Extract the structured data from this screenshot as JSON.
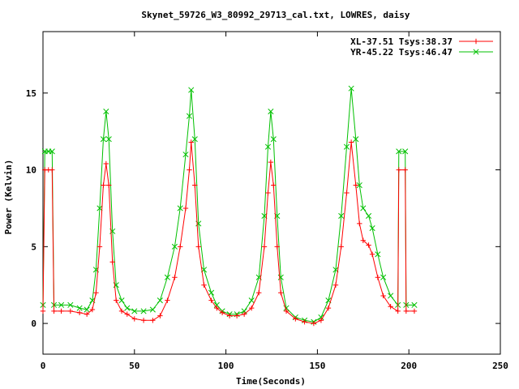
{
  "chart_data": {
    "type": "line",
    "title": "Skynet_59726_W3_80992_29713_cal.txt, LOWRES, daisy",
    "xlabel": "Time(Seconds)",
    "ylabel": "Power (Kelvin)",
    "xlim": [
      0,
      250
    ],
    "ylim": [
      -2,
      19
    ],
    "xticks": [
      0,
      50,
      100,
      150,
      200,
      250
    ],
    "xtick_labels": [
      "0",
      "50",
      "100",
      "150",
      "200",
      "250"
    ],
    "yticks": [
      0,
      5,
      10,
      15
    ],
    "ytick_labels": [
      "0",
      "5",
      "10",
      "15"
    ],
    "grid": false,
    "legend_position": "top-right",
    "series": [
      {
        "name": "XL-37.51 Tsys:38.37",
        "color": "#ff0000",
        "marker": "plus",
        "points": [
          [
            0,
            0.8
          ],
          [
            1,
            10.0
          ],
          [
            3,
            10.0
          ],
          [
            5,
            10.0
          ],
          [
            6,
            0.8
          ],
          [
            10,
            0.8
          ],
          [
            15,
            0.8
          ],
          [
            20,
            0.7
          ],
          [
            24,
            0.6
          ],
          [
            27,
            0.9
          ],
          [
            29,
            2.0
          ],
          [
            31,
            5.0
          ],
          [
            33,
            9.0
          ],
          [
            34.5,
            10.4
          ],
          [
            36,
            9.0
          ],
          [
            38,
            4.0
          ],
          [
            40,
            1.5
          ],
          [
            43,
            0.8
          ],
          [
            46,
            0.6
          ],
          [
            50,
            0.3
          ],
          [
            55,
            0.2
          ],
          [
            60,
            0.2
          ],
          [
            64,
            0.5
          ],
          [
            68,
            1.5
          ],
          [
            72,
            3.0
          ],
          [
            75,
            5.0
          ],
          [
            78,
            7.5
          ],
          [
            80,
            10.0
          ],
          [
            81,
            11.8
          ],
          [
            83,
            9.0
          ],
          [
            85,
            5.0
          ],
          [
            88,
            2.5
          ],
          [
            92,
            1.5
          ],
          [
            95,
            1.0
          ],
          [
            98,
            0.7
          ],
          [
            102,
            0.5
          ],
          [
            106,
            0.5
          ],
          [
            110,
            0.6
          ],
          [
            114,
            1.0
          ],
          [
            118,
            2.0
          ],
          [
            121,
            5.0
          ],
          [
            123,
            8.5
          ],
          [
            124.5,
            10.5
          ],
          [
            126,
            9.0
          ],
          [
            128,
            5.0
          ],
          [
            130,
            2.0
          ],
          [
            133,
            0.8
          ],
          [
            138,
            0.3
          ],
          [
            143,
            0.1
          ],
          [
            148,
            0.0
          ],
          [
            152,
            0.2
          ],
          [
            156,
            1.0
          ],
          [
            160,
            2.5
          ],
          [
            163,
            5.0
          ],
          [
            166,
            8.5
          ],
          [
            168.5,
            11.8
          ],
          [
            171,
            9.0
          ],
          [
            173,
            6.5
          ],
          [
            175,
            5.4
          ],
          [
            178,
            5.1
          ],
          [
            180,
            4.5
          ],
          [
            183,
            3.0
          ],
          [
            186,
            1.8
          ],
          [
            190,
            1.1
          ],
          [
            194,
            0.8
          ],
          [
            194.5,
            10.0
          ],
          [
            198,
            10.0
          ],
          [
            198.5,
            0.8
          ],
          [
            203,
            0.8
          ]
        ]
      },
      {
        "name": "YR-45.22 Tsys:46.47",
        "color": "#00c000",
        "marker": "cross",
        "points": [
          [
            0,
            1.2
          ],
          [
            1,
            11.2
          ],
          [
            3,
            11.2
          ],
          [
            5,
            11.2
          ],
          [
            6,
            1.2
          ],
          [
            10,
            1.2
          ],
          [
            15,
            1.2
          ],
          [
            20,
            1.0
          ],
          [
            24,
            0.9
          ],
          [
            27,
            1.5
          ],
          [
            29,
            3.5
          ],
          [
            31,
            7.5
          ],
          [
            33,
            12.0
          ],
          [
            34.5,
            13.8
          ],
          [
            36,
            12.0
          ],
          [
            38,
            6.0
          ],
          [
            40,
            2.5
          ],
          [
            43,
            1.5
          ],
          [
            46,
            1.0
          ],
          [
            50,
            0.8
          ],
          [
            55,
            0.8
          ],
          [
            60,
            0.9
          ],
          [
            64,
            1.5
          ],
          [
            68,
            3.0
          ],
          [
            72,
            5.0
          ],
          [
            75,
            7.5
          ],
          [
            78,
            11.0
          ],
          [
            80,
            13.5
          ],
          [
            81,
            15.2
          ],
          [
            83,
            12.0
          ],
          [
            85,
            6.5
          ],
          [
            88,
            3.5
          ],
          [
            92,
            2.0
          ],
          [
            95,
            1.2
          ],
          [
            98,
            0.8
          ],
          [
            102,
            0.6
          ],
          [
            106,
            0.6
          ],
          [
            110,
            0.8
          ],
          [
            114,
            1.5
          ],
          [
            118,
            3.0
          ],
          [
            121,
            7.0
          ],
          [
            123,
            11.5
          ],
          [
            124.5,
            13.8
          ],
          [
            126,
            12.0
          ],
          [
            128,
            7.0
          ],
          [
            130,
            3.0
          ],
          [
            133,
            1.0
          ],
          [
            138,
            0.4
          ],
          [
            143,
            0.2
          ],
          [
            148,
            0.1
          ],
          [
            152,
            0.4
          ],
          [
            156,
            1.5
          ],
          [
            160,
            3.5
          ],
          [
            163,
            7.0
          ],
          [
            166,
            11.5
          ],
          [
            168.5,
            15.3
          ],
          [
            171,
            12.0
          ],
          [
            173,
            9.0
          ],
          [
            175,
            7.5
          ],
          [
            178,
            7.0
          ],
          [
            180,
            6.2
          ],
          [
            183,
            4.5
          ],
          [
            186,
            3.0
          ],
          [
            190,
            1.8
          ],
          [
            194,
            1.2
          ],
          [
            194.5,
            11.2
          ],
          [
            198,
            11.2
          ],
          [
            198.5,
            1.2
          ],
          [
            203,
            1.2
          ]
        ]
      }
    ]
  }
}
